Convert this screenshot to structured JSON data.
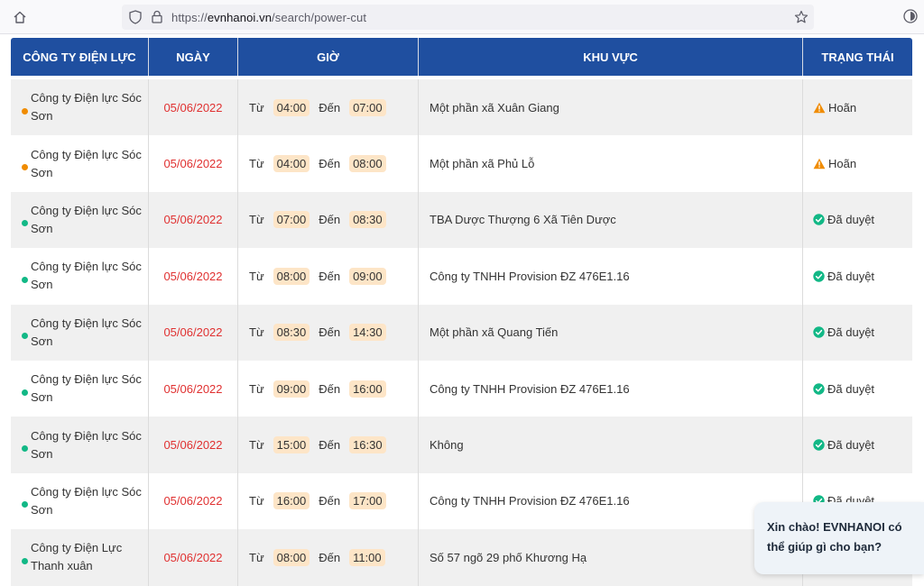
{
  "browser": {
    "url_prefix": "https://",
    "url_domain": "evnhanoi.vn",
    "url_path": "/search/power-cut"
  },
  "table": {
    "headers": {
      "company": "CÔNG TY ĐIỆN LỰC",
      "date": "NGÀY",
      "time": "GIỜ",
      "area": "KHU VỰC",
      "status": "TRẠNG THÁI"
    },
    "from_label": "Từ",
    "to_label": "Đến",
    "rows": [
      {
        "company": "Công ty Điện lực Sóc Sơn",
        "date": "05/06/2022",
        "from": "04:00",
        "to": "07:00",
        "area": "Một phần xã Xuân Giang",
        "status": "Hoãn",
        "status_type": "postponed"
      },
      {
        "company": "Công ty Điện lực Sóc Sơn",
        "date": "05/06/2022",
        "from": "04:00",
        "to": "08:00",
        "area": "Một phần xã Phủ Lỗ",
        "status": "Hoãn",
        "status_type": "postponed"
      },
      {
        "company": "Công ty Điện lực Sóc Sơn",
        "date": "05/06/2022",
        "from": "07:00",
        "to": "08:30",
        "area": "TBA Dược Thượng 6 Xã Tiên Dược",
        "status": "Đã duyệt",
        "status_type": "approved"
      },
      {
        "company": "Công ty Điện lực Sóc Sơn",
        "date": "05/06/2022",
        "from": "08:00",
        "to": "09:00",
        "area": "Công ty TNHH Provision ĐZ 476E1.16",
        "status": "Đã duyệt",
        "status_type": "approved"
      },
      {
        "company": "Công ty Điện lực Sóc Sơn",
        "date": "05/06/2022",
        "from": "08:30",
        "to": "14:30",
        "area": "Một phần xã Quang Tiến",
        "status": "Đã duyệt",
        "status_type": "approved"
      },
      {
        "company": "Công ty Điện lực Sóc Sơn",
        "date": "05/06/2022",
        "from": "09:00",
        "to": "16:00",
        "area": "Công ty TNHH Provision ĐZ 476E1.16",
        "status": "Đã duyệt",
        "status_type": "approved"
      },
      {
        "company": "Công ty Điện lực Sóc Sơn",
        "date": "05/06/2022",
        "from": "15:00",
        "to": "16:30",
        "area": "Không",
        "status": "Đã duyệt",
        "status_type": "approved"
      },
      {
        "company": "Công ty Điện lực Sóc Sơn",
        "date": "05/06/2022",
        "from": "16:00",
        "to": "17:00",
        "area": "Công ty TNHH Provision ĐZ 476E1.16",
        "status": "Đã duyệt",
        "status_type": "approved"
      },
      {
        "company": "Công ty Điện Lực Thanh xuân",
        "date": "05/06/2022",
        "from": "08:00",
        "to": "11:00",
        "area": "Số 57 ngõ 29 phố Khương Hạ",
        "status": "",
        "status_type": "approved"
      }
    ]
  },
  "chat": {
    "message": "Xin chào! EVNHANOI có thể giúp gì cho bạn?"
  },
  "colors": {
    "header_bg": "#1f4fa0",
    "date_red": "#e03131",
    "time_badge": "#fde5c7",
    "dot_postponed": "#f08c00",
    "dot_approved": "#12b886",
    "icon_warning": "#f08c00",
    "icon_approved": "#12b886"
  }
}
